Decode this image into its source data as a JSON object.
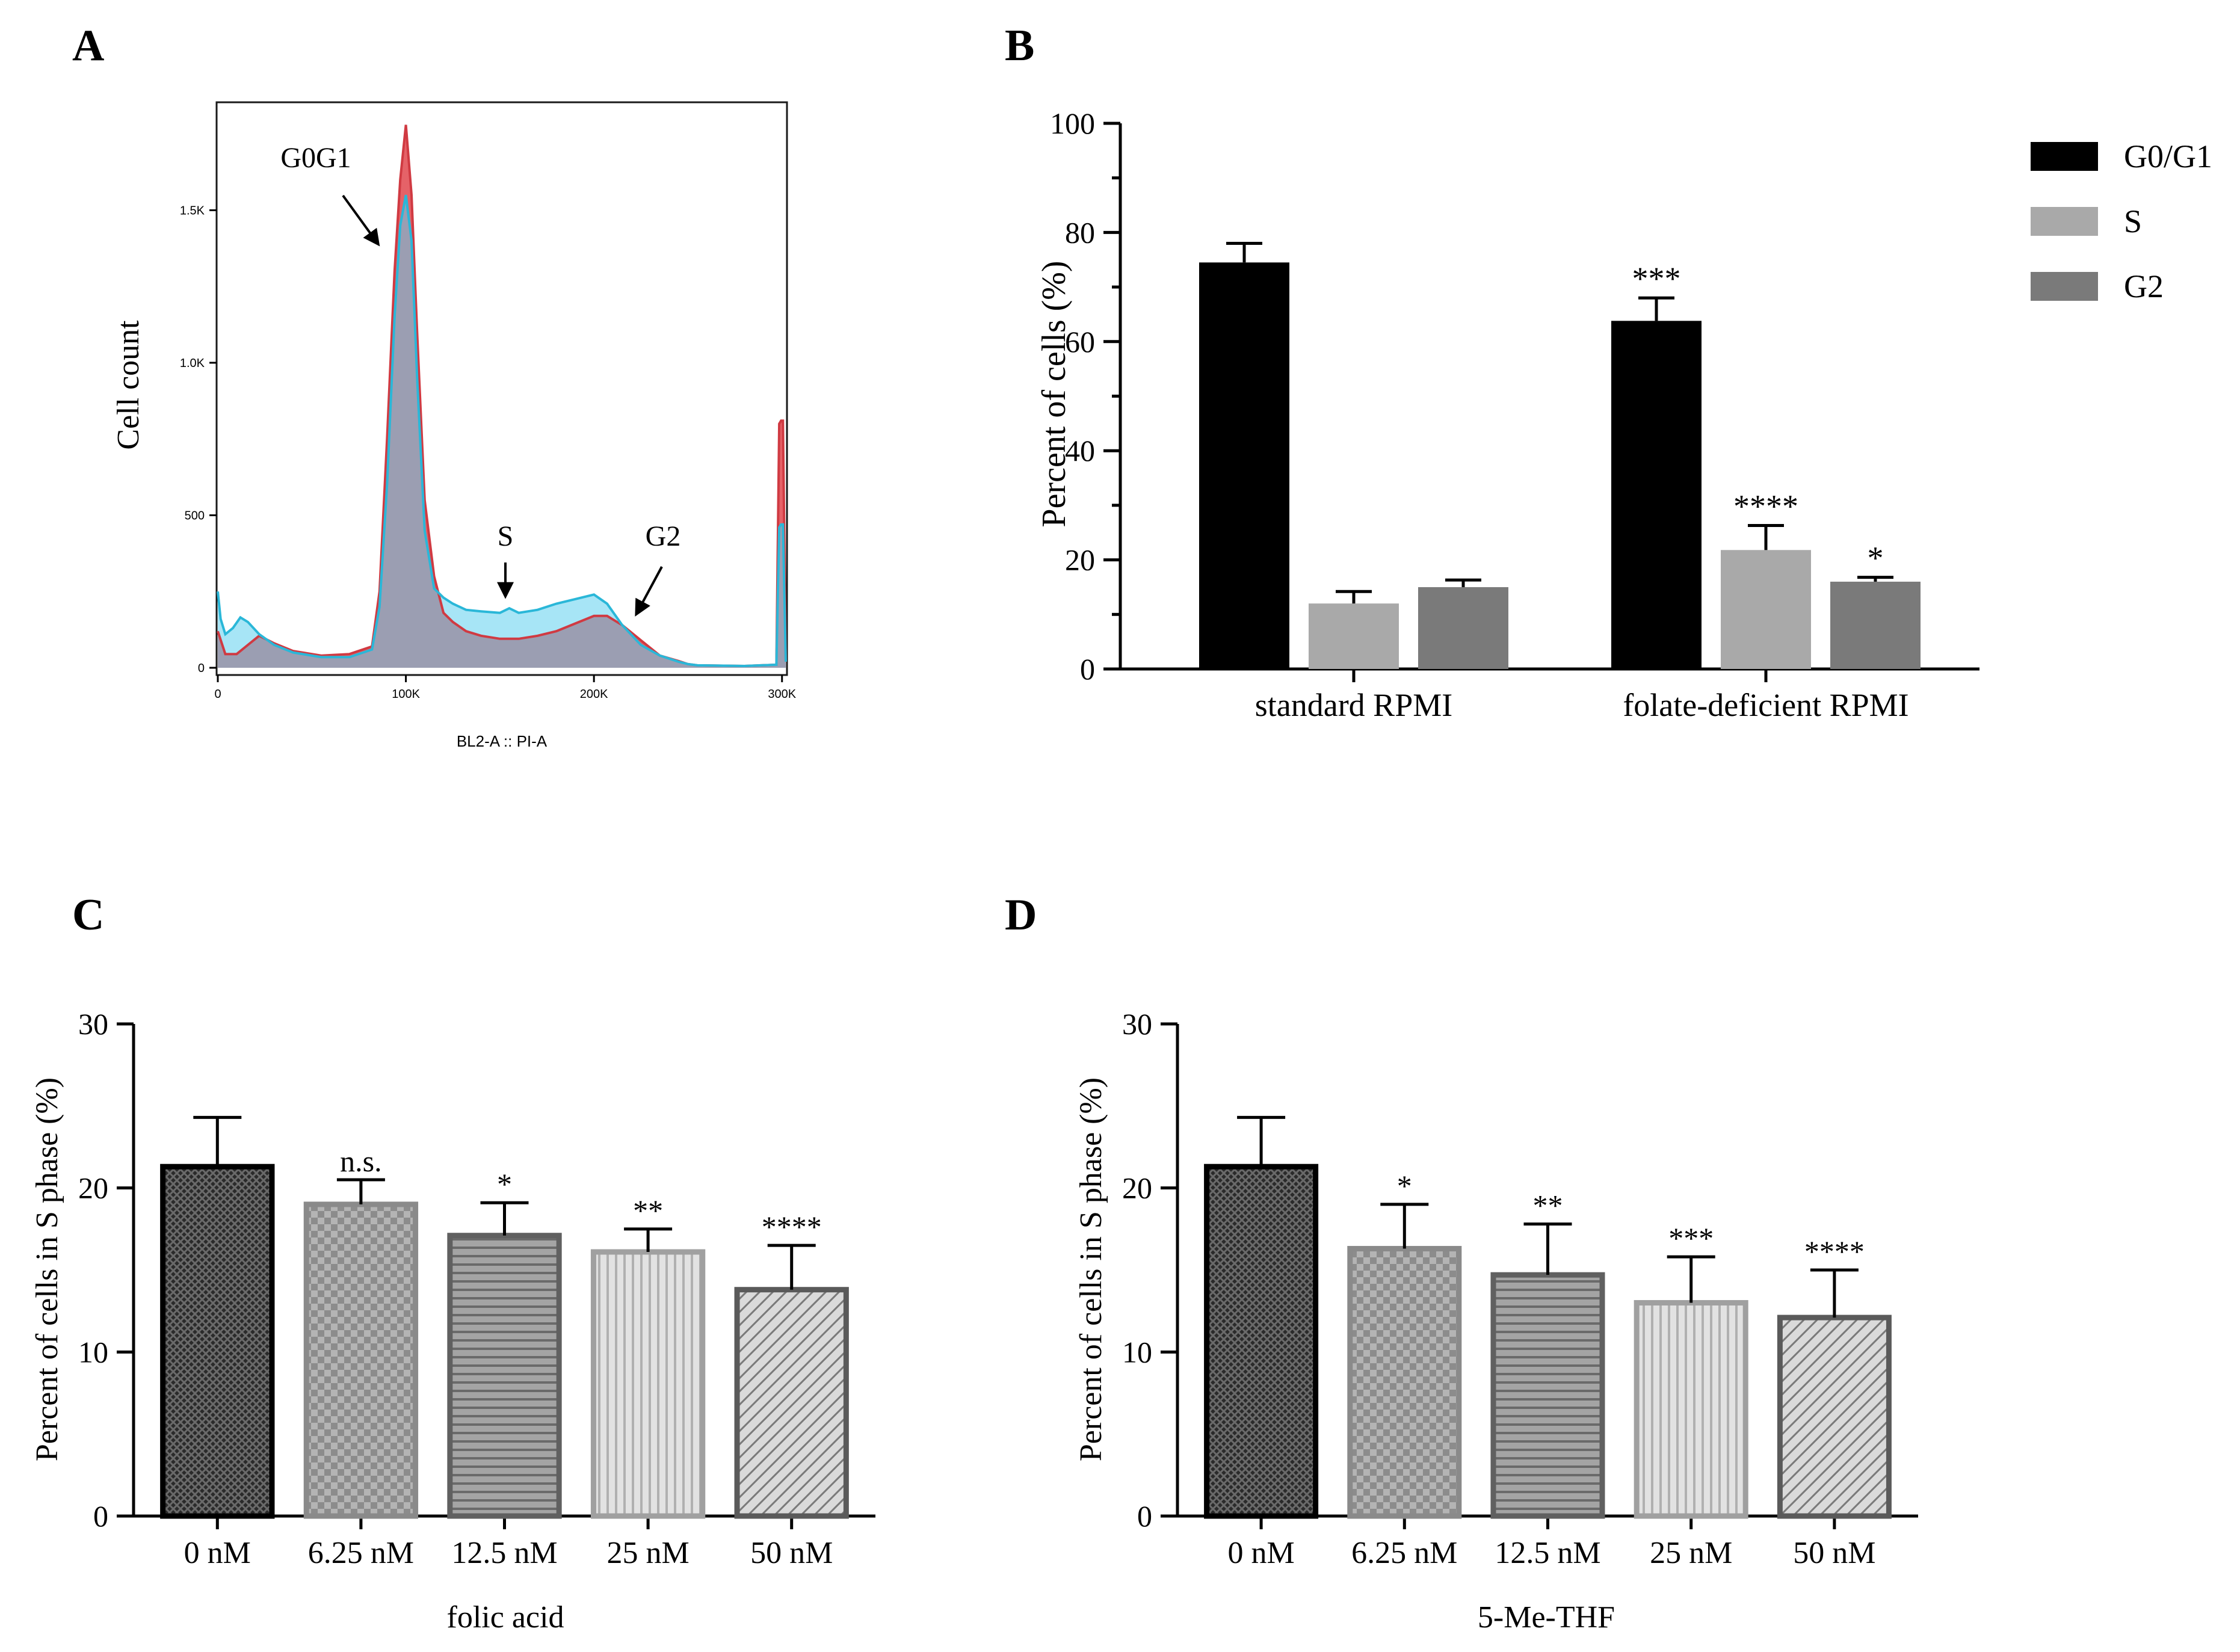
{
  "panels": {
    "a": {
      "letter": "A"
    },
    "b": {
      "letter": "B"
    },
    "c": {
      "letter": "C"
    },
    "d": {
      "letter": "D"
    }
  },
  "chart_data": [
    {
      "id": "A",
      "type": "area",
      "title": "",
      "xlabel": "BL2-A :: PI-A",
      "ylabel": "Cell count",
      "xlim": [
        0,
        302000
      ],
      "ylim": [
        0,
        1850
      ],
      "xticks": [
        "0",
        "100K",
        "200K",
        "300K"
      ],
      "xtick_values": [
        0,
        100000,
        200000,
        300000
      ],
      "yticks": [
        "0",
        "500",
        "1.0K",
        "1.5K"
      ],
      "ytick_values": [
        0,
        500,
        1000,
        1500
      ],
      "annotations": [
        "G0G1",
        "S",
        "G2"
      ],
      "series": [
        {
          "name": "red",
          "color": "#e0464e",
          "x": [
            0,
            4000,
            10000,
            16000,
            22000,
            30000,
            40000,
            55000,
            70000,
            82000,
            86000,
            90000,
            94000,
            97000,
            100000,
            103000,
            106000,
            110000,
            115000,
            120000,
            125000,
            132000,
            140000,
            150000,
            160000,
            170000,
            180000,
            190000,
            200000,
            207000,
            215000,
            225000,
            235000,
            245000,
            250000,
            255000,
            280000,
            297000,
            298500,
            299500,
            300500,
            302000
          ],
          "y": [
            120,
            45,
            45,
            75,
            105,
            80,
            55,
            40,
            45,
            70,
            250,
            750,
            1300,
            1600,
            1780,
            1550,
            1100,
            550,
            300,
            180,
            150,
            120,
            105,
            95,
            95,
            105,
            120,
            145,
            170,
            170,
            140,
            90,
            40,
            22,
            12,
            8,
            6,
            10,
            800,
            810,
            810,
            20
          ]
        },
        {
          "name": "blue",
          "color": "#2ab7d8",
          "x": [
            0,
            1500,
            4000,
            8000,
            12000,
            16000,
            22000,
            30000,
            40000,
            55000,
            70000,
            82000,
            86000,
            90000,
            94000,
            97000,
            100000,
            103000,
            106000,
            110000,
            115000,
            120000,
            125000,
            132000,
            140000,
            150000,
            155000,
            160000,
            170000,
            180000,
            190000,
            200000,
            207000,
            215000,
            225000,
            235000,
            245000,
            250000,
            255000,
            280000,
            297000,
            298500,
            299500,
            300500,
            302000
          ],
          "y": [
            250,
            160,
            110,
            130,
            165,
            150,
            110,
            75,
            50,
            35,
            35,
            60,
            200,
            600,
            1150,
            1450,
            1550,
            1400,
            950,
            450,
            260,
            230,
            210,
            190,
            185,
            180,
            195,
            180,
            190,
            210,
            225,
            240,
            210,
            140,
            75,
            40,
            20,
            12,
            8,
            6,
            10,
            460,
            470,
            470,
            20
          ]
        }
      ]
    },
    {
      "id": "B",
      "type": "bar",
      "title": "",
      "xlabel": "",
      "ylabel": "Percent of cells (%)",
      "ylim": [
        0,
        100
      ],
      "yticks": [
        0,
        20,
        40,
        60,
        80,
        100
      ],
      "categories": [
        "standard RPMI",
        "folate-deficient RPMI"
      ],
      "series": [
        {
          "name": "G0/G1",
          "color": "#000000",
          "values": [
            74.5,
            63.8
          ],
          "errors": [
            3.5,
            4.2
          ],
          "significance": [
            "",
            "***"
          ]
        },
        {
          "name": "S",
          "color": "#a9a9a9",
          "values": [
            12.0,
            21.8
          ],
          "errors": [
            2.2,
            4.5
          ],
          "significance": [
            "",
            "****"
          ]
        },
        {
          "name": "G2",
          "color": "#7a7a7a",
          "values": [
            15.0,
            16.0
          ],
          "errors": [
            1.3,
            0.8
          ],
          "significance": [
            "",
            "*"
          ]
        }
      ]
    },
    {
      "id": "C",
      "type": "bar",
      "title": "",
      "xlabel": "folic acid",
      "ylabel": "Percent of cells in S phase (%)",
      "ylim": [
        0,
        30
      ],
      "yticks": [
        0,
        10,
        20,
        30
      ],
      "categories": [
        "0 nM",
        "6.25 nM",
        "12.5 nM",
        "25 nM",
        "50 nM"
      ],
      "values": [
        21.3,
        19.0,
        17.1,
        16.1,
        13.8
      ],
      "errors": [
        3.0,
        1.5,
        2.0,
        1.4,
        2.7
      ],
      "significance": [
        "",
        "n.s.",
        "*",
        "**",
        "****"
      ],
      "fills": [
        "#2a2a2a",
        "#8c8c8c",
        "#909090",
        "#d8d8d8",
        "#d4d4d4"
      ],
      "borders": [
        "#000000",
        "#8a8a8a",
        "#606060",
        "#a0a0a0",
        "#5a5a5a"
      ],
      "patterns": [
        "crosshatch-dark",
        "checker",
        "horizontal",
        "vertical",
        "diagonal"
      ]
    },
    {
      "id": "D",
      "type": "bar",
      "title": "",
      "xlabel": "5-Me-THF",
      "ylabel": "Percent of cells in S phase (%)",
      "ylim": [
        0,
        30
      ],
      "yticks": [
        0,
        10,
        20,
        30
      ],
      "categories": [
        "0 nM",
        "6.25 nM",
        "12.5 nM",
        "25 nM",
        "50 nM"
      ],
      "values": [
        21.3,
        16.3,
        14.7,
        13.0,
        12.1
      ],
      "errors": [
        3.0,
        2.7,
        3.1,
        2.8,
        2.9
      ],
      "significance": [
        "",
        "*",
        "**",
        "***",
        "****"
      ],
      "fills": [
        "#2a2a2a",
        "#8c8c8c",
        "#909090",
        "#d8d8d8",
        "#d4d4d4"
      ],
      "borders": [
        "#000000",
        "#8a8a8a",
        "#606060",
        "#a0a0a0",
        "#5a5a5a"
      ],
      "patterns": [
        "crosshatch-dark",
        "checker",
        "horizontal",
        "vertical",
        "diagonal"
      ]
    }
  ]
}
